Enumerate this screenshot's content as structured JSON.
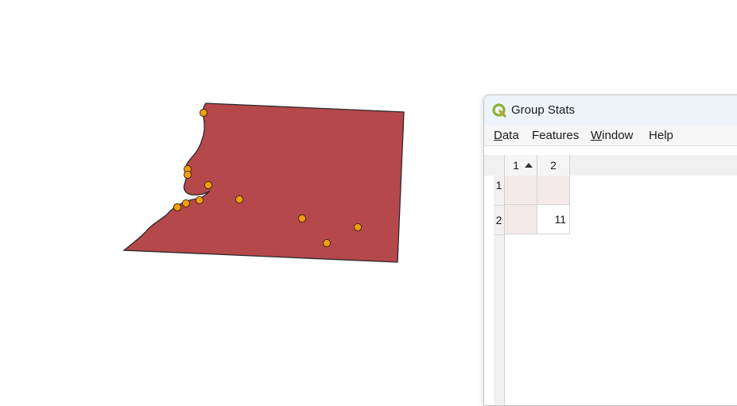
{
  "map": {
    "polygon_fill": "#b5484b",
    "polygon_stroke": "#2a2a2a",
    "point_fill": "#f39c12",
    "point_stroke": "#3a2500",
    "point_count": 12
  },
  "window": {
    "title": "Group Stats",
    "icon": "qgis-icon",
    "menu": [
      {
        "first": "D",
        "rest": "ata"
      },
      {
        "first": "Fe",
        "rest": "atures"
      },
      {
        "first": "W",
        "rest": "indow"
      },
      {
        "first": "He",
        "rest": "lp"
      }
    ]
  },
  "table": {
    "columns": [
      "1",
      "2"
    ],
    "sort_column": "1",
    "rows": [
      {
        "header": "1",
        "cells": [
          "",
          ""
        ]
      },
      {
        "header": "2",
        "cells": [
          "",
          "11"
        ]
      }
    ]
  }
}
